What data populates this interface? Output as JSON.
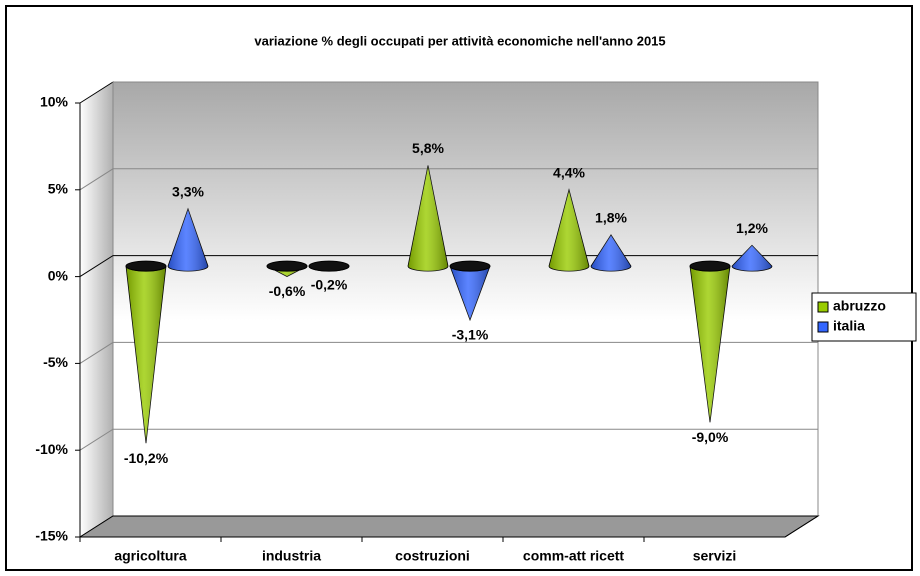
{
  "chart_data": {
    "type": "cone3d",
    "title": "variazione % degli occupati per attività economiche nell'anno 2015",
    "categories": [
      "agricoltura",
      "industria",
      "costruzioni",
      "comm-att ricett",
      "servizi"
    ],
    "series": [
      {
        "name": "abruzzo",
        "color": "#99cc00",
        "values": [
          -10.2,
          -0.6,
          5.8,
          4.4,
          -9.0
        ],
        "value_labels": [
          "-10,2%",
          "-0,6%",
          "5,8%",
          "4,4%",
          "-9,0%"
        ]
      },
      {
        "name": "italia",
        "color": "#3366ff",
        "values": [
          3.3,
          -0.2,
          -3.1,
          1.8,
          1.2
        ],
        "value_labels": [
          "3,3%",
          "-0,2%",
          "-3,1%",
          "1,8%",
          "1,2%"
        ]
      }
    ],
    "ylim": [
      -15,
      10
    ],
    "yticks": [
      {
        "value": -15,
        "label": "-15%"
      },
      {
        "value": -10,
        "label": "-10%"
      },
      {
        "value": -5,
        "label": "-5%"
      },
      {
        "value": 0,
        "label": "0%"
      },
      {
        "value": 5,
        "label": "5%"
      },
      {
        "value": 10,
        "label": "10%"
      }
    ],
    "grid": true,
    "legend": "right"
  }
}
